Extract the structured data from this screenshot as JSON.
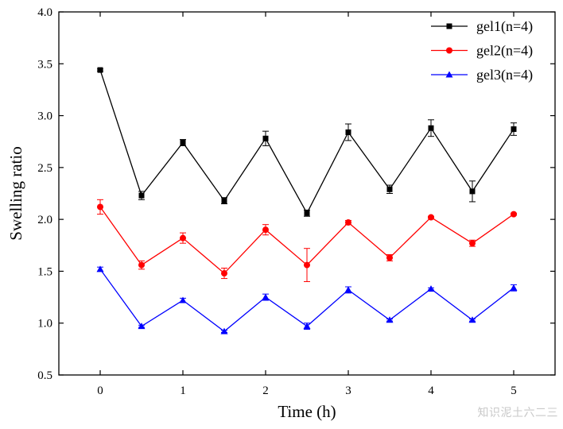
{
  "chart_data": {
    "type": "line",
    "title": "",
    "xlabel": "Time (h)",
    "ylabel": "Swelling ratio",
    "xlim": [
      -0.5,
      5.5
    ],
    "ylim": [
      0.5,
      4.0
    ],
    "x_ticks": [
      0,
      1,
      2,
      3,
      4,
      5
    ],
    "x_tick_labels": [
      "0",
      "1",
      "2",
      "3",
      "4",
      "5"
    ],
    "y_ticks": [
      0.5,
      1.0,
      1.5,
      2.0,
      2.5,
      3.0,
      3.5,
      4.0
    ],
    "y_tick_labels": [
      "0.5",
      "1.0",
      "1.5",
      "2.0",
      "2.5",
      "3.0",
      "3.5",
      "4.0"
    ],
    "x": [
      0,
      0.5,
      1,
      1.5,
      2,
      2.5,
      3,
      3.5,
      4,
      4.5,
      5
    ],
    "series": [
      {
        "name": "gel1(n=4)",
        "color": "#000000",
        "marker": "square",
        "values": [
          3.44,
          2.23,
          2.74,
          2.18,
          2.78,
          2.06,
          2.84,
          2.29,
          2.88,
          2.27,
          2.87
        ],
        "errors": [
          0.01,
          0.04,
          0.03,
          0.03,
          0.07,
          0.03,
          0.08,
          0.04,
          0.08,
          0.1,
          0.06
        ]
      },
      {
        "name": "gel2(n=4)",
        "color": "#ff0000",
        "marker": "circle",
        "values": [
          2.12,
          1.56,
          1.82,
          1.48,
          1.9,
          1.56,
          1.97,
          1.63,
          2.02,
          1.77,
          2.05
        ],
        "errors": [
          0.07,
          0.04,
          0.05,
          0.05,
          0.05,
          0.16,
          0.02,
          0.03,
          0.01,
          0.03,
          0.01
        ]
      },
      {
        "name": "gel3(n=4)",
        "color": "#0000ff",
        "marker": "triangle",
        "values": [
          1.52,
          0.97,
          1.22,
          0.92,
          1.25,
          0.97,
          1.32,
          1.03,
          1.33,
          1.03,
          1.34
        ],
        "errors": [
          0.02,
          0.01,
          0.02,
          0.01,
          0.03,
          0.03,
          0.03,
          0.01,
          0.01,
          0.01,
          0.03
        ]
      }
    ],
    "legend_position": "top-right",
    "grid": false
  },
  "watermark": "知识泥土六二三"
}
